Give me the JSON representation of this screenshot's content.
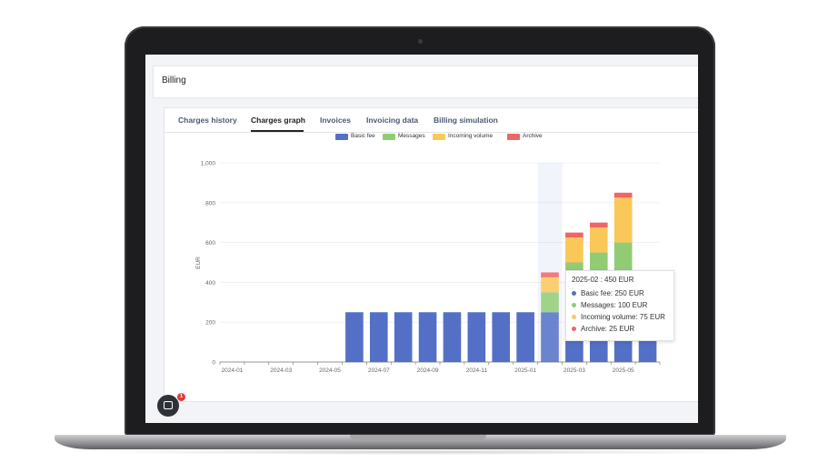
{
  "page": {
    "title": "Billing"
  },
  "tabs": [
    {
      "label": "Charges history",
      "active": false
    },
    {
      "label": "Charges graph",
      "active": true
    },
    {
      "label": "Invoices",
      "active": false
    },
    {
      "label": "Invoicing data",
      "active": false
    },
    {
      "label": "Billing simulation",
      "active": false
    }
  ],
  "chart_data": {
    "type": "bar",
    "stacked": true,
    "ylabel": "EUR",
    "ylim": [
      0,
      1000
    ],
    "yticks": [
      "0",
      "200",
      "400",
      "600",
      "800",
      "1,000"
    ],
    "xtick_labels": [
      "2024-01",
      "2024-03",
      "2024-05",
      "2024-07",
      "2024-09",
      "2024-11",
      "2025-01",
      "2025-03",
      "2025-05"
    ],
    "categories": [
      "2024-01",
      "2024-02",
      "2024-03",
      "2024-04",
      "2024-05",
      "2024-06",
      "2024-07",
      "2024-08",
      "2024-09",
      "2024-10",
      "2024-11",
      "2024-12",
      "2025-01",
      "2025-02",
      "2025-03",
      "2025-04",
      "2025-05",
      "2025-06"
    ],
    "series": [
      {
        "name": "Basic fee",
        "color": "#5470c6",
        "values": [
          0,
          0,
          0,
          0,
          0,
          250,
          250,
          250,
          250,
          250,
          250,
          250,
          250,
          250,
          250,
          250,
          250,
          250
        ]
      },
      {
        "name": "Messages",
        "color": "#91cc75",
        "values": [
          0,
          0,
          0,
          0,
          0,
          0,
          0,
          0,
          0,
          0,
          0,
          0,
          0,
          100,
          250,
          300,
          350,
          0
        ]
      },
      {
        "name": "Incoming volume",
        "color": "#fac858",
        "values": [
          0,
          0,
          0,
          0,
          0,
          0,
          0,
          0,
          0,
          0,
          0,
          0,
          0,
          75,
          125,
          125,
          225,
          0
        ]
      },
      {
        "name": "Archive",
        "color": "#ee6666",
        "values": [
          0,
          0,
          0,
          0,
          0,
          0,
          0,
          0,
          0,
          0,
          0,
          0,
          0,
          25,
          25,
          25,
          25,
          0
        ]
      }
    ],
    "highlight_category": "2025-02",
    "legend_position": "top-center",
    "grid": true
  },
  "tooltip": {
    "title": "2025-02 : 450 EUR",
    "rows": [
      {
        "text": "Basic fee: 250 EUR",
        "color": "#5470c6"
      },
      {
        "text": "Messages: 100 EUR",
        "color": "#91cc75"
      },
      {
        "text": "Incoming volume: 75 EUR",
        "color": "#fac858"
      },
      {
        "text": "Archive: 25 EUR",
        "color": "#ee6666"
      }
    ]
  },
  "chat": {
    "badge": "1"
  }
}
